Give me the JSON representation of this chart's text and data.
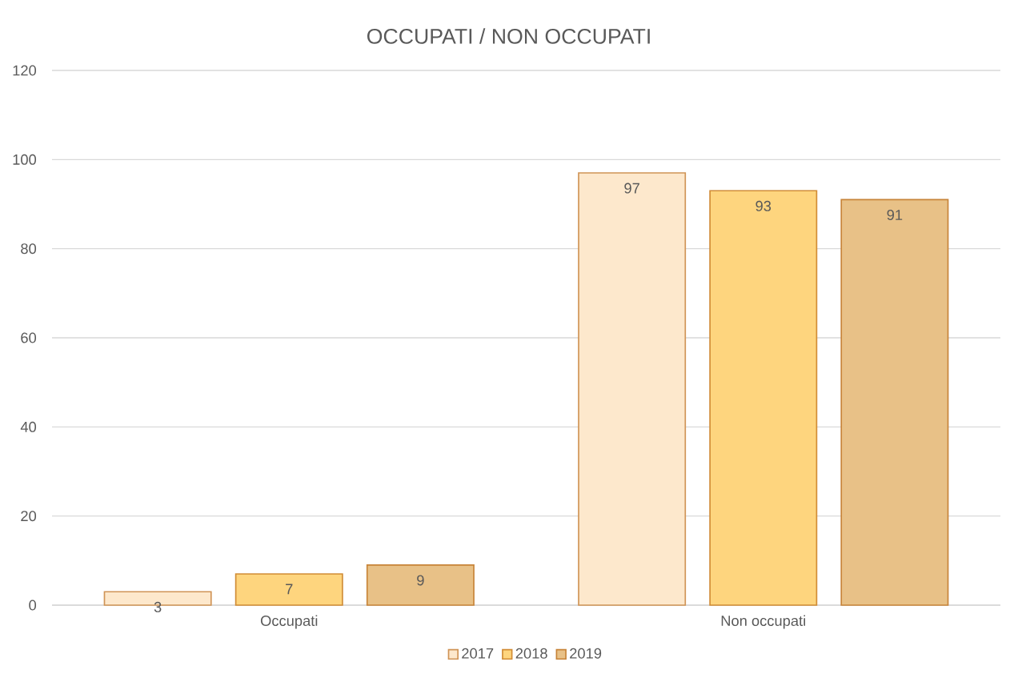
{
  "chart_data": {
    "type": "bar",
    "title": "OCCUPATI  / NON OCCUPATI",
    "categories": [
      "Occupati",
      "Non occupati"
    ],
    "series": [
      {
        "name": "2017",
        "color": "#fde8cc",
        "values": [
          3,
          97
        ]
      },
      {
        "name": "2018",
        "color": "#fed57e",
        "values": [
          7,
          93
        ]
      },
      {
        "name": "2019",
        "color": "#e8c187",
        "values": [
          9,
          91
        ]
      }
    ],
    "ylim": [
      0,
      120
    ],
    "yticks": [
      0,
      20,
      40,
      60,
      80,
      100,
      120
    ],
    "grid": "y",
    "legend": "bottom",
    "data_labels": true
  }
}
